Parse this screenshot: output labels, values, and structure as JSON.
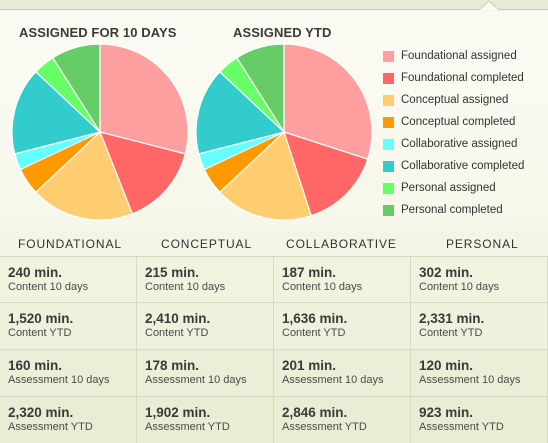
{
  "chart_data": [
    {
      "type": "pie",
      "title": "ASSIGNED FOR 10 DAYS",
      "labels": [
        "Foundational assigned",
        "Foundational completed",
        "Conceptual assigned",
        "Conceptual completed",
        "Collaborative assigned",
        "Collaborative completed",
        "Personal assigned",
        "Personal completed"
      ],
      "values": [
        29,
        15,
        19,
        5,
        3,
        16,
        4,
        9
      ]
    },
    {
      "type": "pie",
      "title": "ASSIGNED YTD",
      "labels": [
        "Foundational assigned",
        "Foundational completed",
        "Conceptual assigned",
        "Conceptual completed",
        "Collaborative assigned",
        "Collaborative completed",
        "Personal assigned",
        "Personal completed"
      ],
      "values": [
        30,
        15,
        18,
        5,
        3,
        16,
        4,
        9
      ]
    }
  ],
  "legend": [
    {
      "label": "Foundational assigned",
      "color": "#ff9e9e"
    },
    {
      "label": "Foundational completed",
      "color": "#ff6666"
    },
    {
      "label": "Conceptual assigned",
      "color": "#ffcc70"
    },
    {
      "label": "Conceptual completed",
      "color": "#ff9900"
    },
    {
      "label": "Collaborative assigned",
      "color": "#66ffff"
    },
    {
      "label": "Collaborative completed",
      "color": "#33cccc"
    },
    {
      "label": "Personal assigned",
      "color": "#66ff66"
    },
    {
      "label": "Personal completed",
      "color": "#66cc66"
    }
  ],
  "categories": [
    "FOUNDATIONAL",
    "CONCEPTUAL",
    "COLLABORATIVE",
    "PERSONAL"
  ],
  "table": {
    "rows": [
      {
        "label": "Content 10 days",
        "values": [
          "240 min.",
          "215 min.",
          "187 min.",
          "302 min."
        ]
      },
      {
        "label": "Content YTD",
        "values": [
          "1,520 min.",
          "2,410 min.",
          "1,636 min.",
          "2,331 min."
        ]
      },
      {
        "label": "Assessment 10 days",
        "values": [
          "160 min.",
          "178 min.",
          "201 min.",
          "120 min."
        ]
      },
      {
        "label": "Assessment YTD",
        "values": [
          "2,320 min.",
          "1,902 min.",
          "2,846 min.",
          "923 min."
        ]
      }
    ]
  }
}
